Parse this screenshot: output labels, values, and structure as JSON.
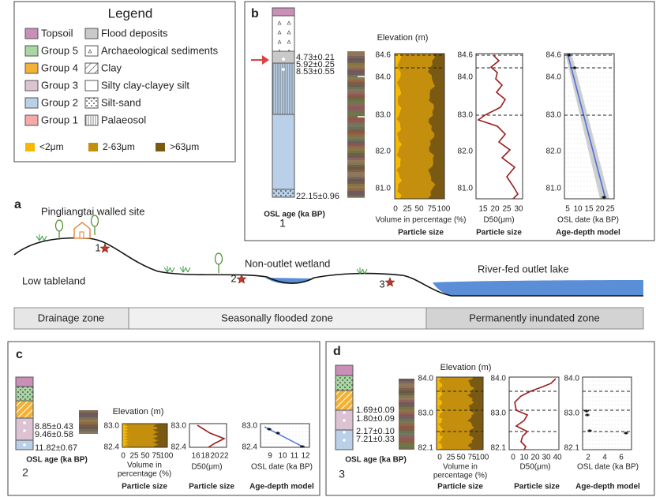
{
  "legend": {
    "title": "Legend",
    "items": [
      "Topsoil",
      "Group 5",
      "Group 4",
      "Group 3",
      "Group 2",
      "Group 1",
      "Flood deposits",
      "Archaeological sediments",
      "Clay",
      "Silty clay-clayey silt",
      "Silt-sand",
      "Palaeosol"
    ],
    "grain_sizes": [
      "<2μm",
      "2-63μm",
      ">63μm"
    ]
  },
  "panel_a": {
    "label": "a",
    "site_name": "Pingliangtai walled site",
    "landforms": [
      "Low tableland",
      "Non-outlet wetland",
      "River-fed outlet lake"
    ],
    "sites": [
      "1",
      "2",
      "3"
    ],
    "zones": [
      "Drainage zone",
      "Seasonally flooded zone",
      "Permanently inundated zone"
    ]
  },
  "panel_b": {
    "label": "b",
    "ages": [
      "4.73±0.21",
      "5.92±0.25",
      "8.53±0.55",
      "22.15±0.96"
    ],
    "age_label": "OSL age (ka BP)",
    "site": "1",
    "elevation_label": "Elevation (m)",
    "elevation_ticks": [
      "84.6",
      "84.0",
      "83.0",
      "82.0",
      "81.0"
    ],
    "particle_ticks": [
      "0",
      "25",
      "50",
      "75",
      "100"
    ],
    "particle_xlabel": [
      "Volume in percentage (%)"
    ],
    "particle_title": "Particle size",
    "d50_ticks": [
      "15",
      "20",
      "25",
      "30"
    ],
    "d50_xlabel": "D50(μm)",
    "d50_title": "Particle size",
    "osl_ticks": [
      "5",
      "10",
      "15",
      "20",
      "25"
    ],
    "osl_xlabel": "OSL date (ka BP)",
    "osl_title": "Age-depth model"
  },
  "panel_c": {
    "label": "c",
    "ages": [
      "8.85±0.43",
      "9.46±0.58",
      "11.82±0.67"
    ],
    "age_label": "OSL age (ka BP)",
    "site": "2",
    "elevation_label": "Elevation (m)",
    "elevation_ticks": [
      "83.0",
      "82.4"
    ],
    "particle_ticks": [
      "0",
      "25",
      "50",
      "75",
      "100"
    ],
    "particle_xlabel": [
      "Volume in",
      "percentage (%)"
    ],
    "particle_title": "Particle size",
    "d50_ticks": [
      "16",
      "18",
      "20",
      "22"
    ],
    "d50_xlabel": "D50(μm)",
    "d50_title": "Particle size",
    "osl_ticks": [
      "9",
      "10",
      "11",
      "12"
    ],
    "osl_xlabel": "OSL date (ka BP)",
    "osl_title": "Age-depth model"
  },
  "panel_d": {
    "label": "d",
    "ages": [
      "1.69±0.09",
      "1.80±0.09",
      "2.17±0.10",
      "7.21±0.33"
    ],
    "age_label": "OSL age (ka BP)",
    "site": "3",
    "elevation_label": "Elevation (m)",
    "elevation_ticks": [
      "84.0",
      "83.0",
      "82.1"
    ],
    "particle_ticks": [
      "0",
      "25",
      "50",
      "75",
      "100"
    ],
    "particle_xlabel": [
      "Volume in",
      "percentage (%)"
    ],
    "particle_title": "Particle size",
    "d50_ticks": [
      "0",
      "10",
      "20",
      "30",
      "40"
    ],
    "d50_xlabel": "D50(μm)",
    "d50_title": "Particle size",
    "osl_ticks": [
      "2",
      "4",
      "6"
    ],
    "osl_xlabel": "OSL date (ka BP)",
    "osl_title": "Age-depth model"
  }
}
